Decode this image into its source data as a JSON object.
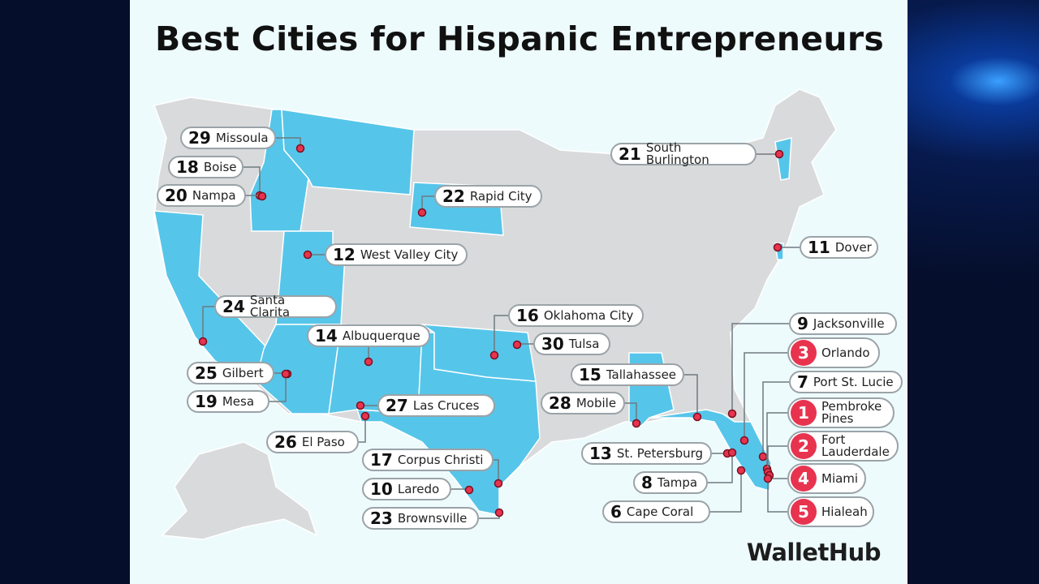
{
  "title": "Best Cities for Hispanic Entrepreneurs",
  "cities": [
    {
      "rank": 29,
      "name": "Missoula"
    },
    {
      "rank": 18,
      "name": "Boise"
    },
    {
      "rank": 20,
      "name": "Nampa"
    },
    {
      "rank": 21,
      "name": "South Burlington"
    },
    {
      "rank": 22,
      "name": "Rapid City"
    },
    {
      "rank": 12,
      "name": "West Valley City"
    },
    {
      "rank": 11,
      "name": "Dover"
    },
    {
      "rank": 24,
      "name": "Santa Clarita"
    },
    {
      "rank": 16,
      "name": "Oklahoma City"
    },
    {
      "rank": 14,
      "name": "Albuquerque"
    },
    {
      "rank": 30,
      "name": "Tulsa"
    },
    {
      "rank": 9,
      "name": "Jacksonville"
    },
    {
      "rank": 3,
      "name": "Orlando"
    },
    {
      "rank": 7,
      "name": "Port St. Lucie"
    },
    {
      "rank": 1,
      "name": "Pembroke Pines"
    },
    {
      "rank": 2,
      "name": "Fort Lauderdale"
    },
    {
      "rank": 4,
      "name": "Miami"
    },
    {
      "rank": 5,
      "name": "Hialeah"
    },
    {
      "rank": 25,
      "name": "Gilbert"
    },
    {
      "rank": 19,
      "name": "Mesa"
    },
    {
      "rank": 15,
      "name": "Tallahassee"
    },
    {
      "rank": 28,
      "name": "Mobile"
    },
    {
      "rank": 27,
      "name": "Las Cruces"
    },
    {
      "rank": 26,
      "name": "El Paso"
    },
    {
      "rank": 13,
      "name": "St. Petersburg"
    },
    {
      "rank": 8,
      "name": "Tampa"
    },
    {
      "rank": 6,
      "name": "Cape Coral"
    },
    {
      "rank": 17,
      "name": "Corpus Christi"
    },
    {
      "rank": 10,
      "name": "Laredo"
    },
    {
      "rank": 23,
      "name": "Brownsville"
    }
  ],
  "brand": "WalletHub"
}
